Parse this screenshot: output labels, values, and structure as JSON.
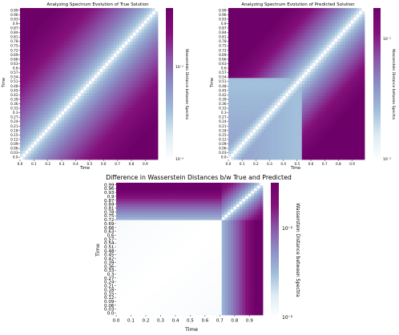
{
  "chart_data": [
    {
      "type": "heatmap",
      "title": "Analyzing Spectrum Evolution of True Solution",
      "xlabel": "Time",
      "ylabel": "Time",
      "x_ticks": [
        "0.0",
        "0.1",
        "0.2",
        "0.3",
        "0.4",
        "0.5",
        "0.6",
        "0.7",
        "0.8",
        "0.9"
      ],
      "y_ticks": [
        "0.99",
        "0.96",
        "0.93",
        "0.9",
        "0.87",
        "0.84",
        "0.81",
        "0.78",
        "0.75",
        "0.72",
        "0.69",
        "0.66",
        "0.63",
        "0.6",
        "0.57",
        "0.54",
        "0.51",
        "0.48",
        "0.45",
        "0.42",
        "0.39",
        "0.36",
        "0.33",
        "0.3",
        "0.27",
        "0.24",
        "0.21",
        "0.18",
        "0.15",
        "0.12",
        "0.09",
        "0.06",
        "0.03",
        "0.0"
      ],
      "colorbar": {
        "label": "Wasserstein Distance between Spectra",
        "ticks": [
          "10⁻¹",
          "10⁻³"
        ],
        "scale": "log",
        "range": [
          0.001,
          0.3
        ]
      },
      "pattern": "true",
      "colormap": [
        "#ffffff",
        "#dcebf3",
        "#9fbcd9",
        "#8c8ec4",
        "#8a56a8",
        "#830f7a",
        "#6e0169"
      ]
    },
    {
      "type": "heatmap",
      "title": "Analyzing Spectrum Evolution of Predicted Solution",
      "xlabel": "Time",
      "ylabel": "Time",
      "x_ticks": [
        "0.0",
        "0.1",
        "0.2",
        "0.3",
        "0.4",
        "0.5",
        "0.6",
        "0.7",
        "0.8",
        "0.9"
      ],
      "y_ticks": [
        "0.99",
        "0.96",
        "0.93",
        "0.9",
        "0.87",
        "0.84",
        "0.81",
        "0.78",
        "0.75",
        "0.72",
        "0.69",
        "0.66",
        "0.63",
        "0.6",
        "0.57",
        "0.54",
        "0.51",
        "0.48",
        "0.45",
        "0.42",
        "0.39",
        "0.36",
        "0.33",
        "0.3",
        "0.27",
        "0.24",
        "0.21",
        "0.18",
        "0.15",
        "0.12",
        "0.09",
        "0.06",
        "0.03",
        "0.0"
      ],
      "colorbar": {
        "label": "Wasserstein Distance between Spectra",
        "ticks": [
          "10⁻¹",
          "10⁻³"
        ],
        "scale": "log",
        "range": [
          0.001,
          0.3
        ]
      },
      "pattern": "predicted",
      "colormap": [
        "#ffffff",
        "#dcebf3",
        "#9fbcd9",
        "#8c8ec4",
        "#8a56a8",
        "#830f7a",
        "#6e0169"
      ]
    },
    {
      "type": "heatmap",
      "title": "Difference in Wasserstein Distances b/w True and Predicted",
      "xlabel": "Time",
      "ylabel": "Time",
      "x_ticks": [
        "0.0",
        "0.1",
        "0.2",
        "0.3",
        "0.4",
        "0.5",
        "0.6",
        "0.7",
        "0.8",
        "0.9"
      ],
      "y_ticks": [
        "0.99",
        "0.96",
        "0.93",
        "0.9",
        "0.87",
        "0.84",
        "0.81",
        "0.78",
        "0.75",
        "0.72",
        "0.69",
        "0.66",
        "0.63",
        "0.6",
        "0.57",
        "0.54",
        "0.51",
        "0.48",
        "0.45",
        "0.42",
        "0.39",
        "0.36",
        "0.33",
        "0.3",
        "0.27",
        "0.24",
        "0.21",
        "0.18",
        "0.15",
        "0.12",
        "0.09",
        "0.06",
        "0.03",
        "0.0"
      ],
      "colorbar": {
        "label": "Wasserstein Distance between Spectra",
        "ticks": [
          "10⁻²",
          "10⁻²"
        ],
        "scale": "log",
        "range": [
          0.001,
          0.3
        ]
      },
      "pattern": "difference",
      "colormap": [
        "#ffffff",
        "#dcebf3",
        "#9fbcd9",
        "#8c8ec4",
        "#8a56a8",
        "#830f7a",
        "#6e0169"
      ]
    }
  ]
}
